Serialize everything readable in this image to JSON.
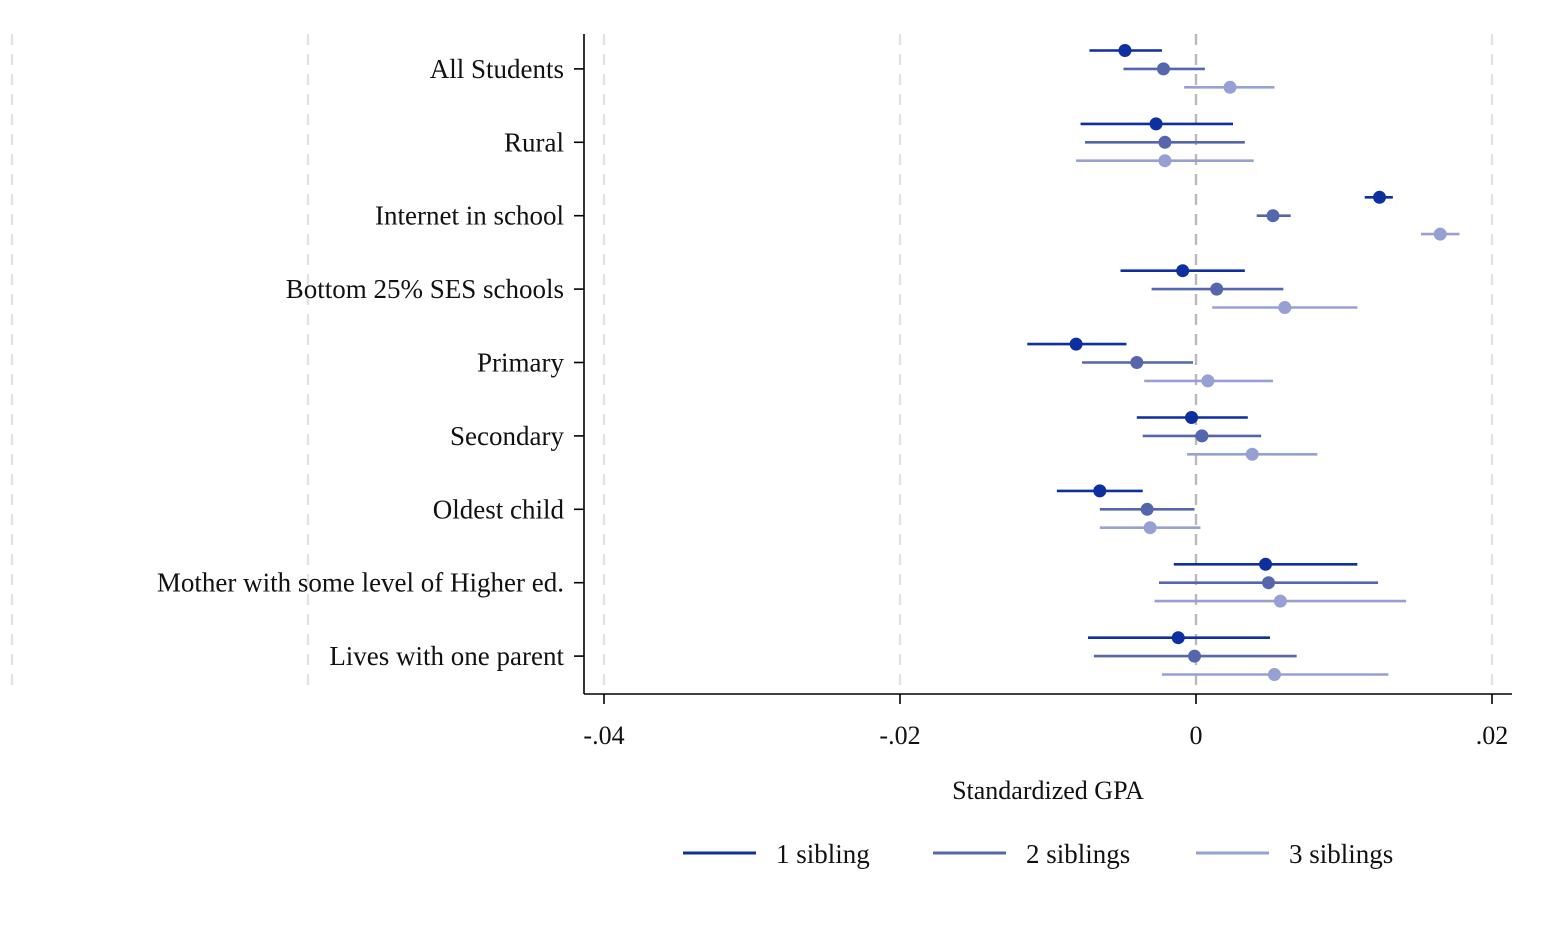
{
  "chart_data": {
    "type": "coefficient-plot",
    "title": "",
    "xlabel": "Standardized GPA",
    "ylabel": "",
    "xlim": [
      -0.0415,
      0.0215
    ],
    "x_ticks": [
      -0.04,
      -0.02,
      0,
      0.02
    ],
    "x_tick_labels": [
      "-.04",
      "-.02",
      "0",
      ".02"
    ],
    "grid": true,
    "reference_line": 0,
    "legend_position": "bottom",
    "categories": [
      "All Students",
      "Rural",
      "Internet in school",
      "Bottom 25% SES schools",
      "Primary",
      "Secondary",
      "Oldest child",
      "Mother with some level of Higher ed.",
      "Lives with one parent"
    ],
    "series": [
      {
        "name": "1 sibling",
        "color": "#0d2fa0",
        "estimates": [
          -0.0048,
          -0.0027,
          0.0124,
          -0.0009,
          -0.0081,
          -0.0003,
          -0.0065,
          0.0047,
          -0.0012
        ],
        "ci_low": [
          -0.0072,
          -0.0078,
          0.0114,
          -0.0051,
          -0.0114,
          -0.004,
          -0.0094,
          -0.0015,
          -0.0073
        ],
        "ci_high": [
          -0.0023,
          0.0025,
          0.0133,
          0.0033,
          -0.0047,
          0.0035,
          -0.0036,
          0.0109,
          0.005
        ]
      },
      {
        "name": "2 siblings",
        "color": "#5566ad",
        "estimates": [
          -0.0022,
          -0.0021,
          0.0052,
          0.0014,
          -0.004,
          0.0004,
          -0.0033,
          0.0049,
          -0.0001
        ],
        "ci_low": [
          -0.0049,
          -0.0075,
          0.0041,
          -0.003,
          -0.0077,
          -0.0036,
          -0.0065,
          -0.0025,
          -0.0069
        ],
        "ci_high": [
          0.0006,
          0.0033,
          0.0064,
          0.0059,
          -0.0002,
          0.0044,
          -0.0001,
          0.0123,
          0.0068
        ]
      },
      {
        "name": "3 siblings",
        "color": "#97a0d2",
        "estimates": [
          0.0023,
          -0.0021,
          0.0165,
          0.006,
          0.0008,
          0.0038,
          -0.0031,
          0.0057,
          0.0053
        ],
        "ci_low": [
          -0.0008,
          -0.0081,
          0.0152,
          0.0011,
          -0.0035,
          -0.0006,
          -0.0065,
          -0.0028,
          -0.0023
        ],
        "ci_high": [
          0.0053,
          0.0039,
          0.0178,
          0.0109,
          0.0052,
          0.0082,
          0.0003,
          0.0142,
          0.013
        ]
      }
    ]
  }
}
